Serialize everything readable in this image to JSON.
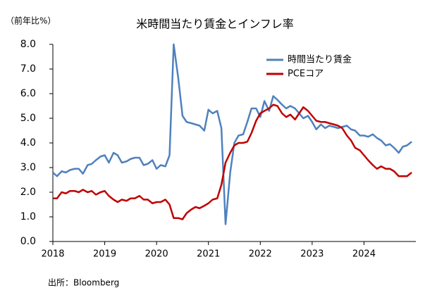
{
  "chart_data": {
    "type": "line",
    "title": "米時間当たり賃金とインフレ率",
    "y_label": "（前年比%）",
    "source": "出所：Bloomberg",
    "x": [
      2018,
      2018.08,
      2018.17,
      2018.25,
      2018.33,
      2018.42,
      2018.5,
      2018.58,
      2018.67,
      2018.75,
      2018.83,
      2018.92,
      2019,
      2019.08,
      2019.17,
      2019.25,
      2019.33,
      2019.42,
      2019.5,
      2019.58,
      2019.67,
      2019.75,
      2019.83,
      2019.92,
      2020,
      2020.08,
      2020.17,
      2020.25,
      2020.33,
      2020.42,
      2020.5,
      2020.58,
      2020.67,
      2020.75,
      2020.83,
      2020.92,
      2021,
      2021.08,
      2021.17,
      2021.25,
      2021.33,
      2021.42,
      2021.5,
      2021.58,
      2021.67,
      2021.75,
      2021.83,
      2021.92,
      2022,
      2022.08,
      2022.17,
      2022.25,
      2022.33,
      2022.42,
      2022.5,
      2022.58,
      2022.67,
      2022.75,
      2022.83,
      2022.92,
      2023,
      2023.08,
      2023.17,
      2023.25,
      2023.33,
      2023.42,
      2023.5,
      2023.58,
      2023.67,
      2023.75,
      2023.83,
      2023.92,
      2024,
      2024.08,
      2024.17,
      2024.25,
      2024.33,
      2024.42,
      2024.5,
      2024.58,
      2024.67,
      2024.75,
      2024.83,
      2024.92
    ],
    "series": [
      {
        "name": "時間当たり賃金",
        "color": "#4f81bd",
        "values": [
          2.8,
          2.65,
          2.85,
          2.8,
          2.9,
          2.95,
          2.95,
          2.75,
          3.1,
          3.15,
          3.3,
          3.45,
          3.5,
          3.2,
          3.6,
          3.5,
          3.2,
          3.25,
          3.35,
          3.4,
          3.4,
          3.1,
          3.15,
          3.3,
          2.95,
          3.1,
          3.05,
          3.5,
          8.0,
          6.6,
          5.1,
          4.85,
          4.8,
          4.75,
          4.7,
          4.5,
          5.35,
          5.2,
          5.3,
          4.6,
          0.7,
          2.8,
          4.0,
          4.3,
          4.35,
          4.85,
          5.4,
          5.4,
          5.05,
          5.7,
          5.3,
          5.9,
          5.75,
          5.55,
          5.4,
          5.5,
          5.4,
          5.2,
          5.0,
          5.1,
          4.85,
          4.55,
          4.75,
          4.6,
          4.7,
          4.65,
          4.6,
          4.65,
          4.7,
          4.55,
          4.5,
          4.3,
          4.3,
          4.25,
          4.35,
          4.2,
          4.1,
          3.9,
          3.95,
          3.8,
          3.6,
          3.85,
          3.9,
          4.05
        ]
      },
      {
        "name": "PCEコア",
        "color": "#c00000",
        "values": [
          1.75,
          1.75,
          2.0,
          1.95,
          2.05,
          2.05,
          2.0,
          2.1,
          2.0,
          2.05,
          1.9,
          2.0,
          2.05,
          1.85,
          1.7,
          1.6,
          1.7,
          1.65,
          1.75,
          1.75,
          1.85,
          1.7,
          1.7,
          1.55,
          1.6,
          1.6,
          1.7,
          1.5,
          0.95,
          0.95,
          0.9,
          1.15,
          1.3,
          1.4,
          1.35,
          1.45,
          1.55,
          1.7,
          1.75,
          2.3,
          3.2,
          3.6,
          3.9,
          4.0,
          4.0,
          4.05,
          4.4,
          4.9,
          5.2,
          5.3,
          5.4,
          5.55,
          5.5,
          5.2,
          5.05,
          5.15,
          4.95,
          5.2,
          5.45,
          5.3,
          5.1,
          4.9,
          4.85,
          4.85,
          4.8,
          4.75,
          4.7,
          4.6,
          4.3,
          4.1,
          3.8,
          3.7,
          3.5,
          3.3,
          3.1,
          2.95,
          3.05,
          2.95,
          2.95,
          2.85,
          2.65,
          2.65,
          2.65,
          2.8
        ]
      }
    ],
    "xlim": [
      2018,
      2025
    ],
    "xticks": [
      2018,
      2019,
      2020,
      2021,
      2022,
      2023,
      2024
    ],
    "ylim": [
      0,
      8
    ],
    "yticks": [
      {
        "value": 0,
        "label": "0.0"
      },
      {
        "value": 1,
        "label": "1.0"
      },
      {
        "value": 2,
        "label": "2.0"
      },
      {
        "value": 3,
        "label": "3.0"
      },
      {
        "value": 4,
        "label": "4.0"
      },
      {
        "value": 5,
        "label": "5.0"
      },
      {
        "value": 6,
        "label": "6.0"
      },
      {
        "value": 7,
        "label": "7.0"
      },
      {
        "value": 8,
        "label": "8.0"
      }
    ],
    "grid": false,
    "legend": "top-right"
  }
}
